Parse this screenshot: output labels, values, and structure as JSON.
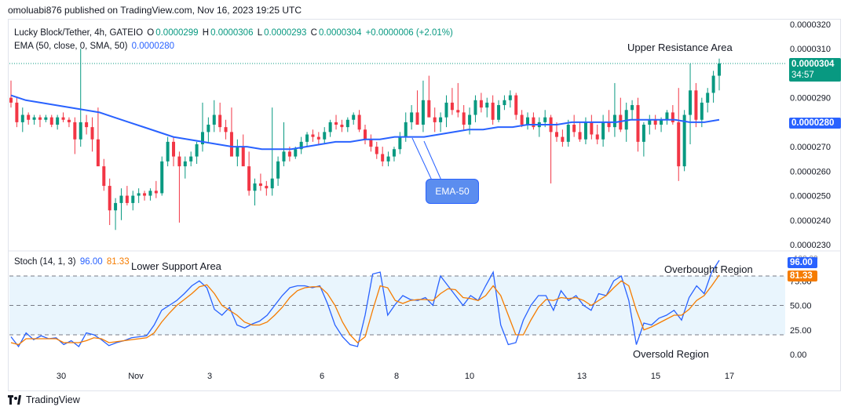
{
  "header": {
    "publisher": "omoluabi876 published on TradingView.com, Nov 16, 2023 19:25 UTC"
  },
  "legend": {
    "symbol": "Lucky Block/Tether, 4h, GATEIO",
    "o_label": "O",
    "o_value": "0.0000299",
    "h_label": "H",
    "h_value": "0.0000306",
    "l_label": "L",
    "l_value": "0.0000293",
    "c_label": "C",
    "c_value": "0.0000304",
    "change": "+0.0000006 (+2.01%)",
    "ema_label": "EMA (50, close, 0, SMA, 50)",
    "ema_value": "0.0000280",
    "stoch_label": "Stoch (14, 1, 3)",
    "stoch_k": "96.00",
    "stoch_d": "81.33"
  },
  "price_tags": {
    "last_price": "0.0000304",
    "countdown": "34:57",
    "ema": "0.0000280",
    "stoch_k": "96.00",
    "stoch_d": "81.33",
    "stoch_top": "100.00"
  },
  "annotations": {
    "upper_resistance": "Upper Resistance Area",
    "lower_support": "Lower Support Area",
    "ema_callout": "EMA-50",
    "overbought": "Overbought Region",
    "oversold": "Oversold Region"
  },
  "footer": {
    "brand": "TradingView"
  },
  "colors": {
    "up": "#089981",
    "down": "#f23645",
    "ema": "#2962ff",
    "stoch_k": "#2962ff",
    "stoch_d": "#f57c00",
    "band": "#e3f2fd"
  },
  "chart_data": [
    {
      "type": "candlestick",
      "title": "Lucky Block/Tether, 4h, GATEIO",
      "ylim": [
        2.3e-05,
        3.2e-05
      ],
      "yticks": [
        "0.0000320",
        "0.0000310",
        "0.0000290",
        "0.0000270",
        "0.0000260",
        "0.0000250",
        "0.0000240",
        "0.0000230"
      ],
      "xticks": [
        "30",
        "Nov",
        "3",
        "6",
        "8",
        "10",
        "13",
        "15",
        "17"
      ],
      "last_price": 3.04e-05,
      "ema50_last": 2.8e-05,
      "candles_ohlc": [
        [
          2.9e-05,
          2.97e-05,
          2.86e-05,
          2.88e-05
        ],
        [
          2.88e-05,
          2.9e-05,
          2.78e-05,
          2.8e-05
        ],
        [
          2.8e-05,
          2.86e-05,
          2.76e-05,
          2.83e-05
        ],
        [
          2.83e-05,
          2.84e-05,
          2.79e-05,
          2.81e-05
        ],
        [
          2.81e-05,
          2.83e-05,
          2.79e-05,
          2.82e-05
        ],
        [
          2.82e-05,
          2.83e-05,
          2.78e-05,
          2.81e-05
        ],
        [
          2.81e-05,
          2.83e-05,
          2.8e-05,
          2.82e-05
        ],
        [
          2.82e-05,
          2.83e-05,
          2.78e-05,
          2.79e-05
        ],
        [
          2.79e-05,
          2.83e-05,
          2.77e-05,
          2.82e-05
        ],
        [
          2.82e-05,
          2.84e-05,
          2.8e-05,
          2.81e-05
        ],
        [
          2.81e-05,
          2.82e-05,
          2.78e-05,
          2.8e-05
        ],
        [
          2.8e-05,
          2.82e-05,
          2.67e-05,
          2.73e-05
        ],
        [
          2.73e-05,
          3.1e-05,
          2.7e-05,
          2.8e-05
        ],
        [
          2.8e-05,
          2.83e-05,
          2.75e-05,
          2.78e-05
        ],
        [
          2.78e-05,
          2.82e-05,
          2.68e-05,
          2.73e-05
        ],
        [
          2.73e-05,
          2.86e-05,
          2.66e-05,
          2.62e-05
        ],
        [
          2.62e-05,
          2.65e-05,
          2.52e-05,
          2.54e-05
        ],
        [
          2.54e-05,
          2.57e-05,
          2.38e-05,
          2.44e-05
        ],
        [
          2.44e-05,
          2.49e-05,
          2.36e-05,
          2.47e-05
        ],
        [
          2.47e-05,
          2.53e-05,
          2.4e-05,
          2.5e-05
        ],
        [
          2.5e-05,
          2.54e-05,
          2.46e-05,
          2.47e-05
        ],
        [
          2.47e-05,
          2.52e-05,
          2.44e-05,
          2.5e-05
        ],
        [
          2.5e-05,
          2.53e-05,
          2.47e-05,
          2.51e-05
        ],
        [
          2.51e-05,
          2.52e-05,
          2.48e-05,
          2.5e-05
        ],
        [
          2.5e-05,
          2.53e-05,
          2.48e-05,
          2.52e-05
        ],
        [
          2.52e-05,
          2.56e-05,
          2.49e-05,
          2.51e-05
        ],
        [
          2.51e-05,
          2.66e-05,
          2.5e-05,
          2.64e-05
        ],
        [
          2.64e-05,
          2.74e-05,
          2.62e-05,
          2.72e-05
        ],
        [
          2.72e-05,
          2.74e-05,
          2.62e-05,
          2.66e-05
        ],
        [
          2.66e-05,
          2.68e-05,
          2.39e-05,
          2.62e-05
        ],
        [
          2.62e-05,
          2.66e-05,
          2.57e-05,
          2.64e-05
        ],
        [
          2.64e-05,
          2.68e-05,
          2.62e-05,
          2.66e-05
        ],
        [
          2.66e-05,
          2.72e-05,
          2.63e-05,
          2.71e-05
        ],
        [
          2.71e-05,
          2.88e-05,
          2.68e-05,
          2.76e-05
        ],
        [
          2.76e-05,
          2.82e-05,
          2.72e-05,
          2.79e-05
        ],
        [
          2.79e-05,
          2.89e-05,
          2.76e-05,
          2.83e-05
        ],
        [
          2.83e-05,
          2.88e-05,
          2.76e-05,
          2.78e-05
        ],
        [
          2.78e-05,
          2.81e-05,
          2.73e-05,
          2.76e-05
        ],
        [
          2.76e-05,
          2.86e-05,
          2.68e-05,
          2.66e-05
        ],
        [
          2.66e-05,
          2.73e-05,
          2.62e-05,
          2.7e-05
        ],
        [
          2.7e-05,
          2.75e-05,
          2.66e-05,
          2.62e-05
        ],
        [
          2.62e-05,
          2.68e-05,
          2.5e-05,
          2.52e-05
        ],
        [
          2.52e-05,
          2.57e-05,
          2.46e-05,
          2.55e-05
        ],
        [
          2.55e-05,
          2.59e-05,
          2.52e-05,
          2.54e-05
        ],
        [
          2.54e-05,
          2.56e-05,
          2.5e-05,
          2.53e-05
        ],
        [
          2.53e-05,
          2.86e-05,
          2.5e-05,
          2.57e-05
        ],
        [
          2.57e-05,
          2.66e-05,
          2.54e-05,
          2.64e-05
        ],
        [
          2.64e-05,
          2.8e-05,
          2.62e-05,
          2.68e-05
        ],
        [
          2.68e-05,
          2.7e-05,
          2.64e-05,
          2.66e-05
        ],
        [
          2.66e-05,
          2.7e-05,
          2.65e-05,
          2.69e-05
        ],
        [
          2.69e-05,
          2.74e-05,
          2.67e-05,
          2.72e-05
        ],
        [
          2.72e-05,
          2.76e-05,
          2.7e-05,
          2.75e-05
        ],
        [
          2.75e-05,
          2.77e-05,
          2.72e-05,
          2.74e-05
        ],
        [
          2.74e-05,
          2.76e-05,
          2.71e-05,
          2.73e-05
        ],
        [
          2.73e-05,
          2.78e-05,
          2.71e-05,
          2.76e-05
        ],
        [
          2.76e-05,
          2.81e-05,
          2.74e-05,
          2.8e-05
        ],
        [
          2.8e-05,
          2.83e-05,
          2.77e-05,
          2.79e-05
        ],
        [
          2.79e-05,
          2.81e-05,
          2.76e-05,
          2.78e-05
        ],
        [
          2.78e-05,
          2.82e-05,
          2.76e-05,
          2.81e-05
        ],
        [
          2.81e-05,
          2.84e-05,
          2.79e-05,
          2.83e-05
        ],
        [
          2.83e-05,
          2.85e-05,
          2.76e-05,
          2.77e-05
        ],
        [
          2.77e-05,
          2.79e-05,
          2.71e-05,
          2.73e-05
        ],
        [
          2.73e-05,
          2.75e-05,
          2.68e-05,
          2.7e-05
        ],
        [
          2.7e-05,
          2.72e-05,
          2.65e-05,
          2.67e-05
        ],
        [
          2.67e-05,
          2.7e-05,
          2.62e-05,
          2.64e-05
        ],
        [
          2.64e-05,
          2.68e-05,
          2.62e-05,
          2.66e-05
        ],
        [
          2.66e-05,
          2.7e-05,
          2.64e-05,
          2.69e-05
        ],
        [
          2.69e-05,
          2.76e-05,
          2.67e-05,
          2.74e-05
        ],
        [
          2.74e-05,
          2.84e-05,
          2.72e-05,
          2.8e-05
        ],
        [
          2.8e-05,
          2.87e-05,
          2.77e-05,
          2.84e-05
        ],
        [
          2.84e-05,
          2.93e-05,
          2.8e-05,
          2.79e-05
        ],
        [
          2.79e-05,
          2.97e-05,
          2.76e-05,
          2.89e-05
        ],
        [
          2.89e-05,
          2.99e-05,
          2.83e-05,
          2.82e-05
        ],
        [
          2.82e-05,
          2.86e-05,
          2.76e-05,
          2.8e-05
        ],
        [
          2.8e-05,
          2.84e-05,
          2.76e-05,
          2.82e-05
        ],
        [
          2.82e-05,
          2.91e-05,
          2.78e-05,
          2.88e-05
        ],
        [
          2.88e-05,
          2.94e-05,
          2.83e-05,
          2.85e-05
        ],
        [
          2.85e-05,
          2.96e-05,
          2.82e-05,
          2.84e-05
        ],
        [
          2.84e-05,
          2.87e-05,
          2.77e-05,
          2.79e-05
        ],
        [
          2.79e-05,
          2.86e-05,
          2.75e-05,
          2.83e-05
        ],
        [
          2.83e-05,
          2.91e-05,
          2.8e-05,
          2.89e-05
        ],
        [
          2.89e-05,
          2.92e-05,
          2.84e-05,
          2.86e-05
        ],
        [
          2.86e-05,
          2.9e-05,
          2.82e-05,
          2.88e-05
        ],
        [
          2.88e-05,
          2.91e-05,
          2.79e-05,
          2.81e-05
        ],
        [
          2.81e-05,
          2.89e-05,
          2.8e-05,
          2.87e-05
        ],
        [
          2.87e-05,
          2.91e-05,
          2.85e-05,
          2.89e-05
        ],
        [
          2.89e-05,
          2.93e-05,
          2.86e-05,
          2.91e-05
        ],
        [
          2.91e-05,
          2.92e-05,
          2.81e-05,
          2.83e-05
        ],
        [
          2.83e-05,
          2.85e-05,
          2.78e-05,
          2.79e-05
        ],
        [
          2.79e-05,
          2.84e-05,
          2.77e-05,
          2.82e-05
        ],
        [
          2.82e-05,
          2.84e-05,
          2.77e-05,
          2.78e-05
        ],
        [
          2.78e-05,
          2.82e-05,
          2.74e-05,
          2.8e-05
        ],
        [
          2.8e-05,
          2.85e-05,
          2.78e-05,
          2.82e-05
        ],
        [
          2.82e-05,
          2.83e-05,
          2.55e-05,
          2.76e-05
        ],
        [
          2.76e-05,
          2.8e-05,
          2.72e-05,
          2.74e-05
        ],
        [
          2.74e-05,
          2.77e-05,
          2.7e-05,
          2.72e-05
        ],
        [
          2.72e-05,
          2.81e-05,
          2.7e-05,
          2.79e-05
        ],
        [
          2.79e-05,
          2.83e-05,
          2.74e-05,
          2.76e-05
        ],
        [
          2.76e-05,
          2.8e-05,
          2.72e-05,
          2.73e-05
        ],
        [
          2.73e-05,
          2.82e-05,
          2.71e-05,
          2.8e-05
        ],
        [
          2.8e-05,
          2.83e-05,
          2.73e-05,
          2.75e-05
        ],
        [
          2.75e-05,
          2.79e-05,
          2.71e-05,
          2.73e-05
        ],
        [
          2.73e-05,
          2.83e-05,
          2.7e-05,
          2.8e-05
        ],
        [
          2.8e-05,
          2.85e-05,
          2.76e-05,
          2.78e-05
        ],
        [
          2.78e-05,
          2.96e-05,
          2.74e-05,
          2.83e-05
        ],
        [
          2.83e-05,
          2.9e-05,
          2.76e-05,
          2.77e-05
        ],
        [
          2.77e-05,
          2.88e-05,
          2.72e-05,
          2.85e-05
        ],
        [
          2.85e-05,
          2.89e-05,
          2.81e-05,
          2.87e-05
        ],
        [
          2.87e-05,
          2.9e-05,
          2.68e-05,
          2.72e-05
        ],
        [
          2.72e-05,
          2.8e-05,
          2.66e-05,
          2.79e-05
        ],
        [
          2.79e-05,
          2.83e-05,
          2.75e-05,
          2.81e-05
        ],
        [
          2.81e-05,
          2.83e-05,
          2.77e-05,
          2.79e-05
        ],
        [
          2.79e-05,
          2.82e-05,
          2.76e-05,
          2.81e-05
        ],
        [
          2.81e-05,
          2.85e-05,
          2.79e-05,
          2.84e-05
        ],
        [
          2.84e-05,
          2.87e-05,
          2.79e-05,
          2.8e-05
        ],
        [
          2.8e-05,
          2.94e-05,
          2.56e-05,
          2.62e-05
        ],
        [
          2.62e-05,
          2.85e-05,
          2.6e-05,
          2.83e-05
        ],
        [
          2.83e-05,
          3.04e-05,
          2.71e-05,
          2.93e-05
        ],
        [
          2.93e-05,
          2.96e-05,
          2.78e-05,
          2.81e-05
        ],
        [
          2.81e-05,
          2.9e-05,
          2.78e-05,
          2.88e-05
        ],
        [
          2.88e-05,
          2.94e-05,
          2.84e-05,
          2.92e-05
        ],
        [
          2.92e-05,
          3.01e-05,
          2.88e-05,
          2.99e-05
        ],
        [
          2.99e-05,
          3.06e-05,
          2.93e-05,
          3.04e-05
        ]
      ],
      "ema50": [
        2.91e-05,
        2.89e-05,
        2.88e-05,
        2.87e-05,
        2.86e-05,
        2.85e-05,
        2.84e-05,
        2.82e-05,
        2.8e-05,
        2.78e-05,
        2.76e-05,
        2.74e-05,
        2.73e-05,
        2.72e-05,
        2.71e-05,
        2.7e-05,
        2.7e-05,
        2.69e-05,
        2.69e-05,
        2.69e-05,
        2.7e-05,
        2.71e-05,
        2.72e-05,
        2.72e-05,
        2.73e-05,
        2.73e-05,
        2.74e-05,
        2.74e-05,
        2.74e-05,
        2.75e-05,
        2.76e-05,
        2.77e-05,
        2.77e-05,
        2.78e-05,
        2.78e-05,
        2.79e-05,
        2.79e-05,
        2.79e-05,
        2.8e-05,
        2.8e-05,
        2.8e-05,
        2.8e-05,
        2.81e-05,
        2.81e-05,
        2.81e-05,
        2.81e-05,
        2.8e-05,
        2.8e-05,
        2.81e-05
      ]
    },
    {
      "type": "line",
      "title": "Stoch (14, 1, 3)",
      "ylim": [
        0,
        100
      ],
      "yticks": [
        "100.00",
        "75.00",
        "50.00",
        "25.00",
        "0.00"
      ],
      "bands": [
        20,
        80
      ],
      "series": [
        {
          "name": "%K",
          "values": [
            18,
            8,
            22,
            15,
            19,
            16,
            17,
            10,
            14,
            8,
            22,
            20,
            15,
            9,
            12,
            14,
            17,
            18,
            19,
            30,
            45,
            50,
            55,
            62,
            70,
            75,
            68,
            46,
            40,
            48,
            30,
            27,
            31,
            34,
            40,
            50,
            60,
            68,
            70,
            70,
            68,
            70,
            52,
            30,
            18,
            10,
            8,
            40,
            82,
            84,
            40,
            51,
            60,
            56,
            55,
            58,
            50,
            80,
            70,
            60,
            50,
            60,
            55,
            70,
            84,
            30,
            10,
            12,
            35,
            50,
            60,
            60,
            45,
            65,
            55,
            60,
            50,
            45,
            62,
            60,
            75,
            80,
            55,
            10,
            32,
            30,
            37,
            40,
            45,
            35,
            58,
            70,
            62,
            84,
            96
          ]
        },
        {
          "name": "%D",
          "values": [
            12,
            10,
            16,
            16,
            16,
            16,
            16,
            12,
            12,
            12,
            14,
            17,
            16,
            12,
            13,
            14,
            15,
            16,
            17,
            22,
            33,
            42,
            50,
            56,
            62,
            69,
            71,
            62,
            50,
            45,
            40,
            33,
            30,
            30,
            33,
            40,
            48,
            58,
            65,
            68,
            69,
            69,
            62,
            50,
            33,
            20,
            12,
            18,
            45,
            70,
            68,
            55,
            52,
            55,
            56,
            56,
            55,
            62,
            67,
            66,
            58,
            57,
            55,
            60,
            70,
            60,
            40,
            20,
            20,
            35,
            48,
            56,
            55,
            58,
            57,
            58,
            55,
            50,
            55,
            60,
            68,
            75,
            70,
            45,
            25,
            28,
            32,
            36,
            40,
            40,
            46,
            55,
            60,
            70,
            81
          ]
        }
      ]
    }
  ]
}
